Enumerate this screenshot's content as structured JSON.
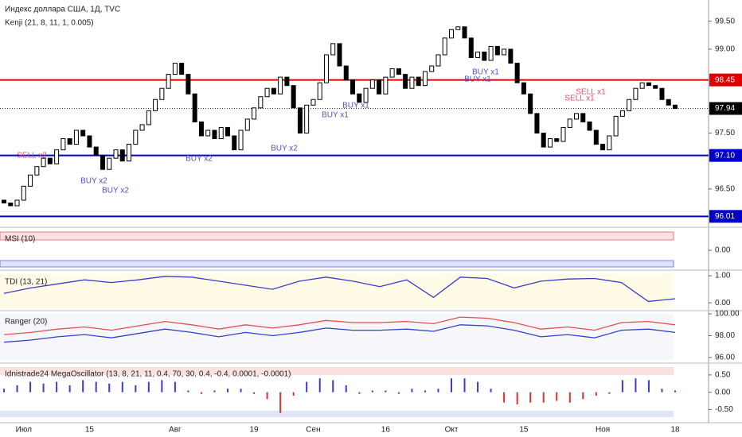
{
  "chart_data": [
    {
      "type": "candlestick",
      "title": "Индекс доллара США, 1Д, TVC",
      "subtitle": "Kenji (21, 8, 11, 1, 0.005)",
      "categories": [
        null,
        null,
        null,
        "Июл",
        null,
        null,
        null,
        null,
        null,
        null,
        null,
        null,
        null,
        "15",
        null,
        null,
        null,
        null,
        null,
        null,
        null,
        null,
        null,
        null,
        null,
        null,
        "Авг",
        null,
        null,
        null,
        null,
        null,
        null,
        null,
        null,
        null,
        null,
        null,
        "19",
        null,
        null,
        null,
        null,
        null,
        null,
        null,
        null,
        "Сен",
        null,
        null,
        null,
        null,
        null,
        null,
        null,
        null,
        null,
        null,
        "16",
        null,
        null,
        null,
        null,
        null,
        null,
        null,
        null,
        null,
        "Окт",
        null,
        null,
        null,
        null,
        null,
        null,
        null,
        null,
        null,
        null,
        "15",
        null,
        null,
        null,
        null,
        null,
        null,
        null,
        null,
        null,
        null,
        null,
        "Ноя",
        null,
        null,
        null,
        null,
        null,
        null,
        null,
        null,
        null,
        null,
        "18"
      ],
      "open": [
        96.3,
        96.25,
        96.2,
        96.3,
        96.55,
        96.75,
        96.9,
        97.05,
        96.95,
        97.2,
        97.4,
        97.3,
        97.55,
        97.45,
        97.25,
        97.1,
        96.85,
        97.05,
        97.2,
        97.0,
        97.3,
        97.55,
        97.65,
        97.9,
        98.1,
        98.3,
        98.55,
        98.75,
        98.55,
        98.2,
        97.7,
        97.45,
        97.55,
        97.4,
        97.6,
        97.45,
        97.2,
        97.55,
        97.75,
        97.95,
        98.15,
        98.3,
        98.2,
        98.5,
        98.35,
        97.95,
        97.5,
        98.0,
        98.1,
        98.4,
        98.9,
        99.1,
        98.7,
        98.45,
        98.2,
        98.05,
        98.3,
        98.45,
        98.2,
        98.5,
        98.65,
        98.55,
        98.3,
        98.5,
        98.35,
        98.6,
        98.7,
        98.9,
        99.2,
        99.35,
        99.4,
        99.2,
        98.85,
        98.95,
        98.8,
        99.05,
        98.9,
        99.0,
        98.75,
        98.4,
        98.2,
        97.85,
        97.5,
        97.25,
        97.4,
        97.35,
        97.6,
        97.75,
        97.85,
        97.7,
        97.55,
        97.3,
        97.2,
        97.45,
        97.8,
        97.9,
        98.1,
        98.3,
        98.4,
        98.35,
        98.3,
        98.1,
        98.0
      ],
      "close": [
        96.25,
        96.2,
        96.3,
        96.55,
        96.75,
        96.9,
        97.05,
        96.95,
        97.2,
        97.4,
        97.3,
        97.55,
        97.45,
        97.25,
        97.1,
        96.85,
        97.05,
        97.2,
        97.0,
        97.3,
        97.55,
        97.65,
        97.9,
        98.1,
        98.3,
        98.55,
        98.75,
        98.55,
        98.2,
        97.7,
        97.45,
        97.55,
        97.4,
        97.6,
        97.45,
        97.2,
        97.55,
        97.75,
        97.95,
        98.15,
        98.3,
        98.2,
        98.5,
        98.35,
        97.95,
        97.5,
        98.0,
        98.1,
        98.4,
        98.9,
        99.1,
        98.7,
        98.45,
        98.2,
        98.05,
        98.3,
        98.45,
        98.2,
        98.5,
        98.65,
        98.55,
        98.3,
        98.5,
        98.35,
        98.6,
        98.7,
        98.9,
        99.2,
        99.35,
        99.4,
        99.2,
        98.85,
        98.95,
        98.8,
        99.05,
        98.9,
        99.0,
        98.75,
        98.4,
        98.2,
        97.85,
        97.5,
        97.25,
        97.4,
        97.35,
        97.6,
        97.75,
        97.85,
        97.7,
        97.55,
        97.3,
        97.2,
        97.45,
        97.8,
        97.9,
        98.1,
        98.3,
        98.4,
        98.35,
        98.3,
        98.1,
        98.0,
        97.94
      ],
      "up_color": "#ffffff",
      "down_color": "#000000",
      "ylim": [
        95.83,
        99.88
      ],
      "yticks": [
        {
          "value": 96.5,
          "label": "96.50"
        },
        {
          "value": 97.5,
          "label": "97.50"
        },
        {
          "value": 99.0,
          "label": "99.00"
        },
        {
          "value": 99.5,
          "label": "99.50"
        }
      ],
      "levels": [
        {
          "value": 98.45,
          "label": "98.45",
          "color": "#e00000"
        },
        {
          "value": 97.1,
          "label": "97.10",
          "color": "#0000cc"
        },
        {
          "value": 96.01,
          "label": "96.01",
          "color": "#0000cc"
        }
      ],
      "last": {
        "value": 97.94,
        "label": "97.94"
      },
      "annotations": [
        "SELL x2",
        "BUY x2",
        "BUY x2",
        "BUY x2",
        "BUY x2",
        "BUY x1",
        "BUY x1",
        "BUY x1",
        "BUY x1",
        "SELL x1",
        "SELL x1"
      ]
    },
    {
      "type": "bands",
      "title": "MSI (10)",
      "ylim": [
        -0.46,
        0.54
      ],
      "yticks": [
        {
          "value": 0,
          "label": "0.00"
        }
      ]
    },
    {
      "type": "line",
      "title": "TDI (13, 21)",
      "ylim": [
        -0.26,
        1.15
      ],
      "yticks": [
        {
          "value": 0,
          "label": "0.00"
        },
        {
          "value": 1,
          "label": "1.00"
        }
      ],
      "series": [
        {
          "color": "#3b3bd0",
          "values": [
            0.35,
            0.55,
            0.7,
            0.85,
            0.75,
            0.85,
            0.98,
            0.95,
            0.8,
            0.65,
            0.5,
            0.8,
            0.95,
            0.8,
            0.6,
            0.85,
            0.2,
            0.95,
            0.9,
            0.55,
            0.8,
            0.88,
            0.9,
            0.75,
            0.05,
            0.15
          ]
        }
      ]
    },
    {
      "type": "line",
      "title": "Ranger (20)",
      "ylim": [
        95.56,
        100.22
      ],
      "yticks": [
        {
          "value": 96,
          "label": "96.00"
        },
        {
          "value": 98,
          "label": "98.00"
        },
        {
          "value": 100,
          "label": "100.00"
        }
      ],
      "series": [
        {
          "color": "#e05050",
          "values": [
            98.1,
            98.3,
            98.6,
            98.8,
            98.5,
            98.9,
            99.3,
            99.0,
            98.6,
            99.0,
            98.7,
            99.0,
            99.4,
            99.2,
            99.2,
            99.3,
            99.1,
            99.7,
            99.6,
            99.2,
            98.6,
            98.8,
            98.5,
            99.2,
            99.3,
            99.0
          ]
        },
        {
          "color": "#3040d0",
          "values": [
            97.4,
            97.6,
            97.9,
            98.1,
            97.8,
            98.2,
            98.6,
            98.3,
            97.9,
            98.3,
            98.0,
            98.3,
            98.7,
            98.5,
            98.5,
            98.6,
            98.4,
            99.0,
            98.9,
            98.5,
            97.9,
            98.1,
            97.8,
            98.5,
            98.6,
            98.3
          ]
        }
      ]
    },
    {
      "type": "histogram",
      "title": "Idnistrade24 MegaOscillator (13, 8, 21, 11, 0.4, 70, 30, 0.4, -0.4, 0.0001, -0.0001)",
      "ylim": [
        -0.86,
        0.82
      ],
      "yticks": [
        {
          "value": -0.5,
          "label": "-0.50"
        },
        {
          "value": 0,
          "label": "0.00"
        },
        {
          "value": 0.5,
          "label": "0.50"
        }
      ],
      "positive_color": "#3b3bd0",
      "negative_color": "#e03030",
      "values": [
        0.1,
        0.2,
        0.3,
        0.25,
        0.3,
        0.2,
        0.35,
        0.3,
        0.25,
        0.3,
        0.2,
        0.3,
        0.35,
        0.3,
        0.05,
        -0.05,
        0.05,
        0.1,
        0.1,
        -0.05,
        -0.2,
        -0.6,
        -0.1,
        0.3,
        0.4,
        0.35,
        0.2,
        -0.05,
        0.05,
        0.05,
        -0.05,
        0.1,
        0.05,
        0.1,
        0.4,
        0.4,
        0.3,
        0.1,
        -0.3,
        -0.35,
        -0.3,
        -0.3,
        -0.25,
        -0.3,
        -0.2,
        -0.1,
        -0.05,
        0.35,
        0.4,
        0.35,
        0.1,
        0.05
      ]
    }
  ]
}
